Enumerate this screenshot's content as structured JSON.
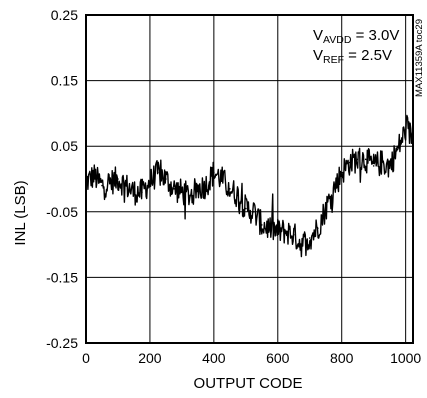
{
  "chart_data": {
    "type": "line",
    "title": "",
    "xlabel": "OUTPUT CODE",
    "ylabel": "INL (LSB)",
    "xlim": [
      0,
      1023
    ],
    "ylim": [
      -0.25,
      0.25
    ],
    "x_ticks": [
      0,
      200,
      400,
      600,
      800,
      1000
    ],
    "x_tick_labels": [
      "0",
      "200",
      "400",
      "600",
      "800",
      "1000"
    ],
    "y_ticks": [
      0.25,
      0.15,
      0.05,
      -0.05,
      -0.15,
      -0.25
    ],
    "y_tick_labels": [
      "0.25",
      "0.15",
      "0.05",
      "-0.05",
      "-0.15",
      "-0.25"
    ],
    "grid": true,
    "annotations": {
      "line1": {
        "prefix": "V",
        "sub": "AVDD",
        "suffix": " = 3.0V"
      },
      "line2": {
        "prefix": "V",
        "sub": "REF",
        "suffix": " = 2.5V"
      }
    },
    "side_label": "MAX11359A toc29",
    "series": [
      {
        "name": "",
        "color": "#000000",
        "x": [
          0,
          25,
          50,
          75,
          100,
          125,
          150,
          175,
          200,
          225,
          250,
          275,
          300,
          325,
          350,
          375,
          400,
          425,
          450,
          475,
          500,
          525,
          550,
          575,
          600,
          625,
          650,
          675,
          700,
          725,
          750,
          775,
          800,
          825,
          850,
          875,
          900,
          925,
          950,
          975,
          1000,
          1023
        ],
        "values": [
          -0.005,
          0.005,
          -0.01,
          -0.005,
          0.0,
          -0.01,
          -0.02,
          -0.02,
          -0.005,
          0.01,
          0.0,
          -0.015,
          -0.02,
          -0.025,
          -0.015,
          -0.01,
          0.01,
          0.0,
          -0.015,
          -0.025,
          -0.045,
          -0.05,
          -0.07,
          -0.075,
          -0.08,
          -0.08,
          -0.085,
          -0.1,
          -0.09,
          -0.075,
          -0.045,
          -0.015,
          0.01,
          0.025,
          0.03,
          0.03,
          0.02,
          0.025,
          0.02,
          0.045,
          0.075,
          0.065
        ],
        "noise_band": 0.02
      }
    ]
  }
}
